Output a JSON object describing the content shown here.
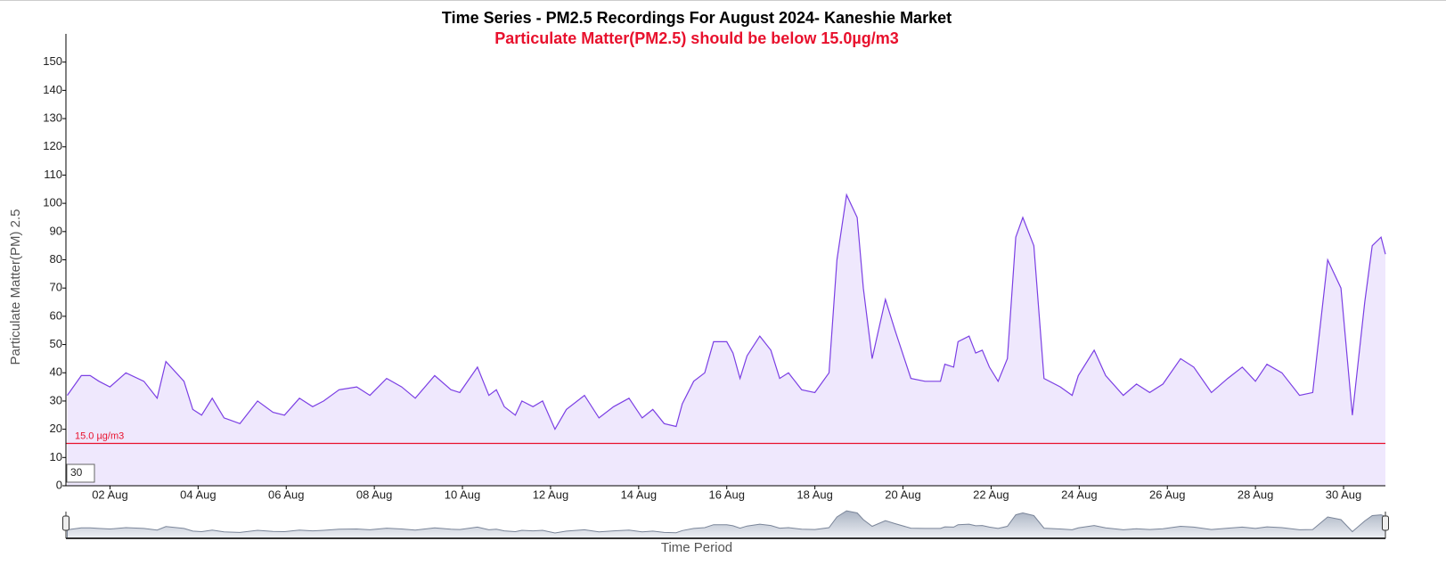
{
  "chart_data": {
    "type": "line",
    "title": "Time Series - PM2.5 Recordings For August 2024- Kaneshie Market",
    "subtitle": "Particulate Matter(PM2.5) should be below 15.0µg/m3",
    "y_label": "Particulate Matter(PM) 2.5",
    "x_label": "Time Period",
    "roll_period": "30",
    "color": "#7b3fe4",
    "fill": "#efe8fd",
    "threshold": {
      "value": 15,
      "label": "15.0 µg/m3",
      "color": "#e8112d"
    },
    "x": [
      1.03,
      1.35,
      1.55,
      1.75,
      2.0,
      2.36,
      2.77,
      3.07,
      3.27,
      3.68,
      3.88,
      4.08,
      4.32,
      4.59,
      4.95,
      5.35,
      5.7,
      5.96,
      6.3,
      6.6,
      6.85,
      7.2,
      7.6,
      7.9,
      8.28,
      8.62,
      8.93,
      9.37,
      9.74,
      9.94,
      10.34,
      10.6,
      10.77,
      10.95,
      11.2,
      11.35,
      11.6,
      11.82,
      12.1,
      12.36,
      12.77,
      13.1,
      13.43,
      13.78,
      14.08,
      14.32,
      14.58,
      14.85,
      14.99,
      15.25,
      15.5,
      15.7,
      16.0,
      16.14,
      16.3,
      16.46,
      16.75,
      17.0,
      17.2,
      17.4,
      17.7,
      18.0,
      18.32,
      18.5,
      18.72,
      18.96,
      19.1,
      19.3,
      19.6,
      19.82,
      20.18,
      20.5,
      20.85,
      20.95,
      21.15,
      21.25,
      21.5,
      21.65,
      21.8,
      21.96,
      22.16,
      22.37,
      22.56,
      22.72,
      22.97,
      23.2,
      23.57,
      23.84,
      23.98,
      24.34,
      24.6,
      25.0,
      25.3,
      25.6,
      25.9,
      26.3,
      26.6,
      27.0,
      27.37,
      27.7,
      28.0,
      28.26,
      28.6,
      29.0,
      29.3,
      29.64,
      29.94,
      30.2,
      30.48,
      30.65,
      30.85,
      30.95
    ],
    "values": [
      32,
      39,
      39,
      37,
      35,
      40,
      37,
      31,
      44,
      37,
      27,
      25,
      31,
      24,
      22,
      30,
      26,
      25,
      31,
      28,
      30,
      34,
      35,
      32,
      38,
      35,
      31,
      39,
      34,
      33,
      42,
      32,
      34,
      28,
      25,
      30,
      28,
      30,
      20,
      27,
      32,
      24,
      28,
      31,
      24,
      27,
      22,
      21,
      29,
      37,
      40,
      51,
      51,
      47,
      38,
      46,
      53,
      48,
      38,
      40,
      34,
      33,
      40,
      80,
      103,
      95,
      70,
      45,
      66,
      55,
      38,
      37,
      37,
      43,
      42,
      51,
      53,
      47,
      48,
      42,
      37,
      45,
      88,
      95,
      85,
      38,
      35,
      32,
      39,
      48,
      39,
      32,
      36,
      33,
      36,
      45,
      42,
      33,
      38,
      42,
      37,
      43,
      40,
      32,
      33,
      80,
      70,
      25,
      65,
      85,
      88,
      82
    ],
    "xlim": [
      1,
      30.95
    ],
    "xticks": [
      {
        "value": 2,
        "label": "02 Aug"
      },
      {
        "value": 4,
        "label": "04 Aug"
      },
      {
        "value": 6,
        "label": "06 Aug"
      },
      {
        "value": 8,
        "label": "08 Aug"
      },
      {
        "value": 10,
        "label": "10 Aug"
      },
      {
        "value": 12,
        "label": "12 Aug"
      },
      {
        "value": 14,
        "label": "14 Aug"
      },
      {
        "value": 16,
        "label": "16 Aug"
      },
      {
        "value": 18,
        "label": "18 Aug"
      },
      {
        "value": 20,
        "label": "20 Aug"
      },
      {
        "value": 22,
        "label": "22 Aug"
      },
      {
        "value": 24,
        "label": "24 Aug"
      },
      {
        "value": 26,
        "label": "26 Aug"
      },
      {
        "value": 28,
        "label": "28 Aug"
      },
      {
        "value": 30,
        "label": "30 Aug"
      }
    ],
    "ylim": [
      0,
      160
    ],
    "yticks": [
      0,
      10,
      20,
      30,
      40,
      50,
      60,
      70,
      80,
      90,
      100,
      110,
      120,
      130,
      140,
      150
    ],
    "grid": false
  }
}
